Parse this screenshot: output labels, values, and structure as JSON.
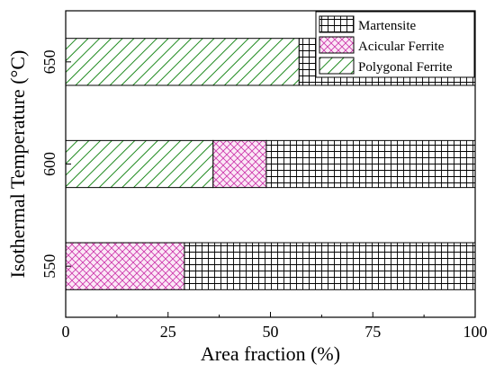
{
  "chart_data": {
    "type": "bar",
    "orientation": "horizontal",
    "stacked": true,
    "categories": [
      "550",
      "600",
      "650"
    ],
    "series": [
      {
        "name": "Polygonal Ferrite",
        "values": [
          0,
          36,
          57
        ],
        "pattern": "diagonal",
        "color": "#1f8a1f"
      },
      {
        "name": "Acicular Ferrite",
        "values": [
          29,
          13,
          0
        ],
        "pattern": "crosshatch",
        "color": "#cc33aa"
      },
      {
        "name": "Martensite",
        "values": [
          71,
          51,
          43
        ],
        "pattern": "grid",
        "color": "#000000"
      }
    ],
    "xlabel": "Area fraction (%)",
    "ylabel": "Isothermal Temperature (°C)",
    "xlim": [
      0,
      100
    ],
    "xticks": [
      0,
      25,
      50,
      75,
      100
    ],
    "legend_position": "top-right",
    "legend_order": [
      "Martensite",
      "Acicular Ferrite",
      "Polygonal Ferrite"
    ]
  }
}
